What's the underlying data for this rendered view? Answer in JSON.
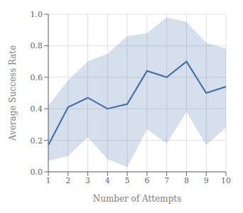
{
  "chart_data": {
    "type": "line",
    "x": [
      1,
      2,
      3,
      4,
      5,
      6,
      7,
      8,
      9,
      10
    ],
    "values": [
      0.17,
      0.41,
      0.47,
      0.4,
      0.43,
      0.64,
      0.6,
      0.7,
      0.5,
      0.54
    ],
    "upper": [
      0.42,
      0.58,
      0.7,
      0.75,
      0.86,
      0.88,
      0.98,
      0.95,
      0.82,
      0.78
    ],
    "lower": [
      0.07,
      0.1,
      0.22,
      0.08,
      0.03,
      0.27,
      0.18,
      0.38,
      0.17,
      0.28
    ],
    "color": "#4472a8",
    "xlabel": "Number of Attempts",
    "ylabel": "Average Success Rate",
    "xlim": [
      1,
      10
    ],
    "ylim": [
      0.0,
      1.0
    ],
    "xticks": [
      1,
      2,
      3,
      4,
      5,
      6,
      7,
      8,
      9,
      10
    ],
    "yticks": [
      {
        "value": 0.0,
        "label": "0.0"
      },
      0.2,
      0.4,
      0.6,
      0.8,
      {
        "value": 1.0,
        "label": "1.0"
      }
    ],
    "grid": true
  }
}
